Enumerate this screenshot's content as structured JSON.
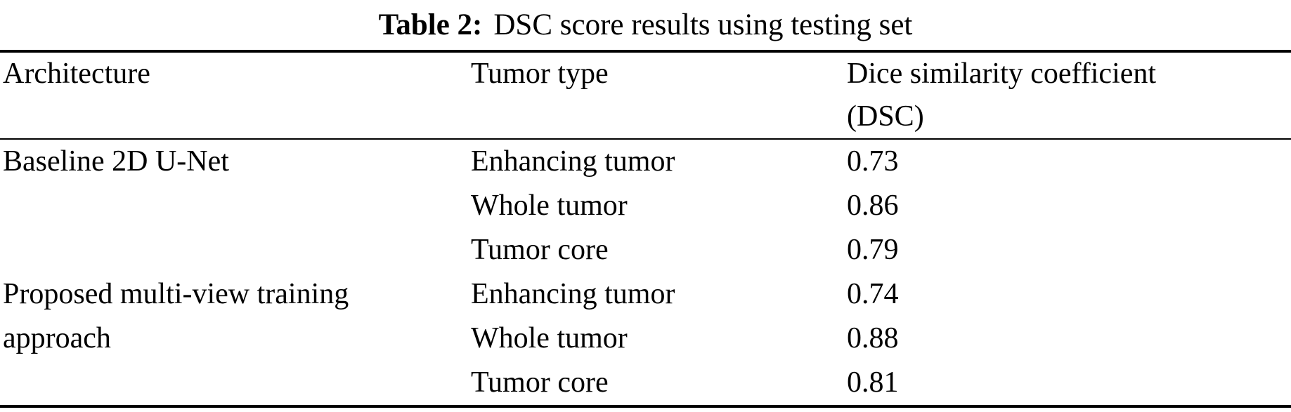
{
  "title": {
    "label": "Table 2:",
    "text": "DSC score results using testing set"
  },
  "table": {
    "header": {
      "architecture": "Architecture",
      "tumor_type": "Tumor type",
      "dsc_line1": "Dice similarity coefficient",
      "dsc_line2": "(DSC)"
    },
    "groups": [
      {
        "architecture": "Baseline 2D U-Net",
        "entries": [
          {
            "tumor_type": "Enhancing tumor",
            "dsc": "0.73"
          },
          {
            "tumor_type": "Whole tumor",
            "dsc": "0.86"
          },
          {
            "tumor_type": "Tumor core",
            "dsc": "0.79"
          }
        ]
      },
      {
        "architecture": "Proposed multi-view training approach",
        "entries": [
          {
            "tumor_type": "Enhancing tumor",
            "dsc": "0.74"
          },
          {
            "tumor_type": "Whole tumor",
            "dsc": "0.88"
          },
          {
            "tumor_type": "Tumor core",
            "dsc": "0.81"
          }
        ]
      }
    ]
  },
  "chart_data": {
    "type": "table",
    "title": "Table 2: DSC score results using testing set",
    "columns": [
      "Architecture",
      "Tumor type",
      "Dice similarity coefficient (DSC)"
    ],
    "rows": [
      [
        "Baseline 2D U-Net",
        "Enhancing tumor",
        0.73
      ],
      [
        "Baseline 2D U-Net",
        "Whole tumor",
        0.86
      ],
      [
        "Baseline 2D U-Net",
        "Tumor core",
        0.79
      ],
      [
        "Proposed multi-view training approach",
        "Enhancing tumor",
        0.74
      ],
      [
        "Proposed multi-view training approach",
        "Whole tumor",
        0.88
      ],
      [
        "Proposed multi-view training approach",
        "Tumor core",
        0.81
      ]
    ]
  }
}
